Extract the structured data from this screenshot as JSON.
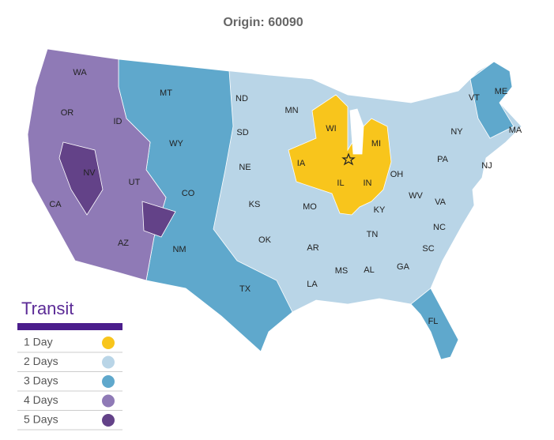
{
  "title": "Origin: 60090",
  "states": [
    "WA",
    "OR",
    "ID",
    "MT",
    "ND",
    "MN",
    "WI",
    "MI",
    "VT",
    "ME",
    "NY",
    "MA",
    "CA",
    "NV",
    "UT",
    "WY",
    "SD",
    "NE",
    "IA",
    "IL",
    "IN",
    "OH",
    "PA",
    "NJ",
    "CO",
    "KS",
    "MO",
    "KY",
    "WV",
    "VA",
    "AZ",
    "NM",
    "OK",
    "AR",
    "TN",
    "NC",
    "SC",
    "TX",
    "LA",
    "MS",
    "AL",
    "GA",
    "FL"
  ],
  "legend": {
    "title": "Transit",
    "items": [
      {
        "label": "1 Day",
        "color": "#f8c51c"
      },
      {
        "label": "2 Days",
        "color": "#b9d5e7"
      },
      {
        "label": "3 Days",
        "color": "#5fa8cc"
      },
      {
        "label": "4 Days",
        "color": "#8f7ab6"
      },
      {
        "label": "5 Days",
        "color": "#634288"
      }
    ]
  }
}
